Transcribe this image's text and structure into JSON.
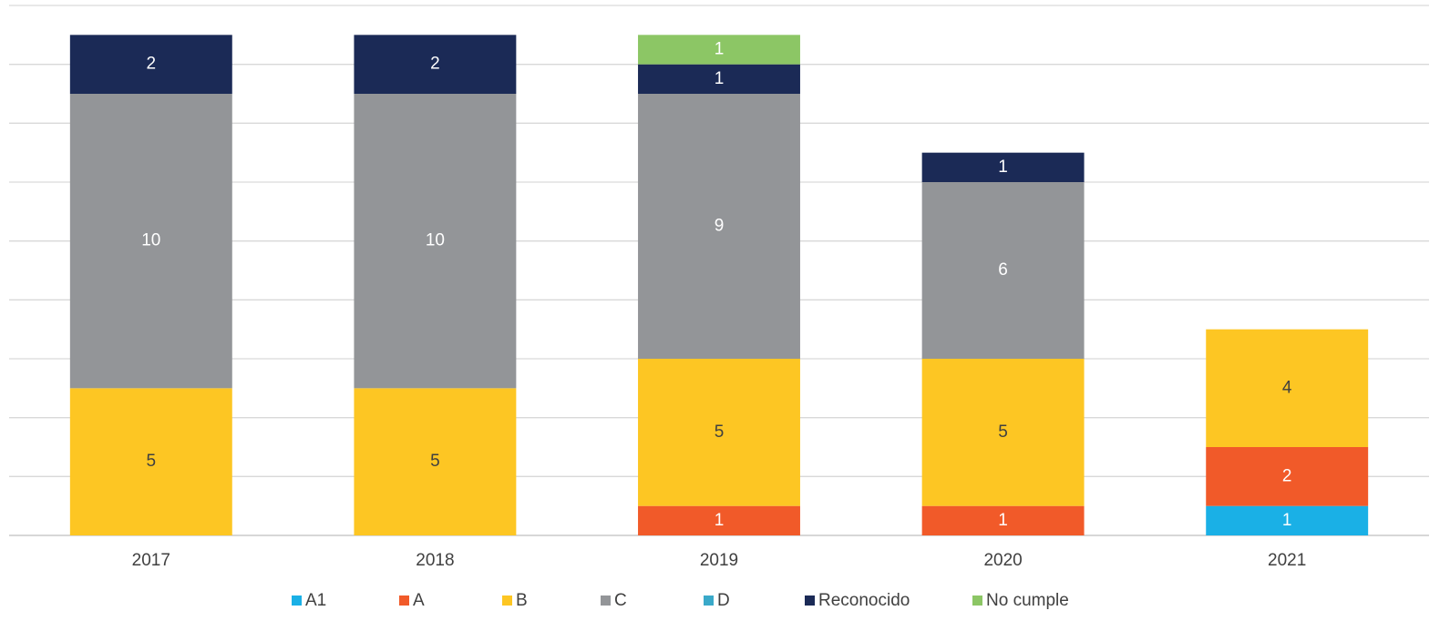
{
  "chart_data": {
    "type": "stacked_bar",
    "categories": [
      "2017",
      "2018",
      "2019",
      "2020",
      "2021"
    ],
    "series": [
      {
        "name": "A1",
        "color": "#1ab0e6",
        "values": [
          null,
          null,
          null,
          null,
          1
        ]
      },
      {
        "name": "A",
        "color": "#f15a29",
        "values": [
          null,
          null,
          1,
          1,
          2
        ]
      },
      {
        "name": "B",
        "color": "#fdc623",
        "values": [
          5,
          5,
          5,
          5,
          4
        ]
      },
      {
        "name": "C",
        "color": "#939598",
        "values": [
          10,
          10,
          9,
          6,
          null
        ]
      },
      {
        "name": "D",
        "color": "#3aa9c9",
        "values": [
          null,
          null,
          null,
          null,
          null
        ]
      },
      {
        "name": "Reconocido",
        "color": "#1b2a56",
        "values": [
          2,
          2,
          1,
          1,
          null
        ]
      },
      {
        "name": "No cumple",
        "color": "#8cc665",
        "values": [
          null,
          null,
          1,
          null,
          null
        ]
      }
    ],
    "ylim": [
      0,
      18
    ],
    "yticks": [
      0,
      2,
      4,
      6,
      8,
      10,
      12,
      14,
      16,
      18
    ],
    "grid": true,
    "legend": "bottom"
  }
}
